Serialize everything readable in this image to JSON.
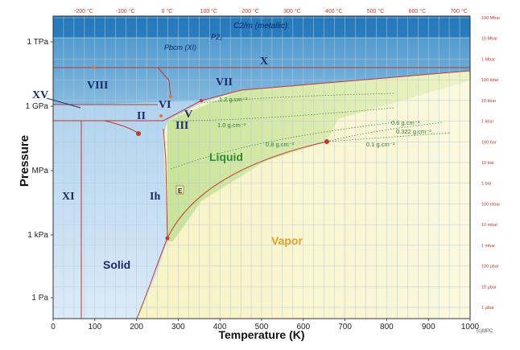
{
  "chart_data": {
    "type": "phase-diagram",
    "xlabel": "Temperature (K)",
    "ylabel": "Pressure",
    "xlim": [
      0,
      1000
    ],
    "x_ticks": [
      "0",
      "100",
      "200",
      "300",
      "400",
      "500",
      "600",
      "700",
      "800",
      "900",
      "1000"
    ],
    "celsius_ticks": [
      "-200 °C",
      "-100 °C",
      "0 °C",
      "100 °C",
      "200 °C",
      "300 °C",
      "400 °C",
      "500 °C",
      "600 °C",
      "700 °C"
    ],
    "y_ticks": [
      "1 TPa",
      "1 GPa",
      "MPa",
      "1 kPa",
      "1 Pa"
    ],
    "right_ticks": [
      "100 Mbar",
      "10 Mbar",
      "1 Mbar",
      "100 kbar",
      "10 kbar",
      "1 kbar",
      "100 bar",
      "10 bar",
      "1 bar",
      "100 mbar",
      "10 mbar",
      "1 mbar",
      "100 µbar",
      "10 µbar",
      "1 µbar"
    ],
    "phases": [
      "C2/m (metallic)",
      "P2₁",
      "Pbcm (XI)",
      "X",
      "VIII",
      "VII",
      "XV",
      "VI",
      "V",
      "II",
      "III",
      "XI",
      "Ih",
      "Liquid",
      "Solid",
      "Vapor",
      "E"
    ],
    "density_labels": [
      "1.2 g.cm⁻³",
      "1.0 g.cm⁻³",
      "0.8 g.cm⁻³",
      "0.6 g.cm⁻³",
      "0.322 g.cm⁻³",
      "0.1 g.cm⁻³"
    ],
    "special_points": [
      {
        "name": "triple point",
        "x": 273.16,
        "y_pa": 611.657
      },
      {
        "name": "critical point",
        "x": 647.1,
        "y_pa": 22064000
      }
    ],
    "credit": "(c)MPC",
    "colors": {
      "solid": "#cfe3f6",
      "liquid": "#dcebb6",
      "vapor": "#f7f4c8",
      "high_pressure": "#3d8fc7",
      "boundary": "#c0392b",
      "density": "#3f8f3a"
    }
  }
}
